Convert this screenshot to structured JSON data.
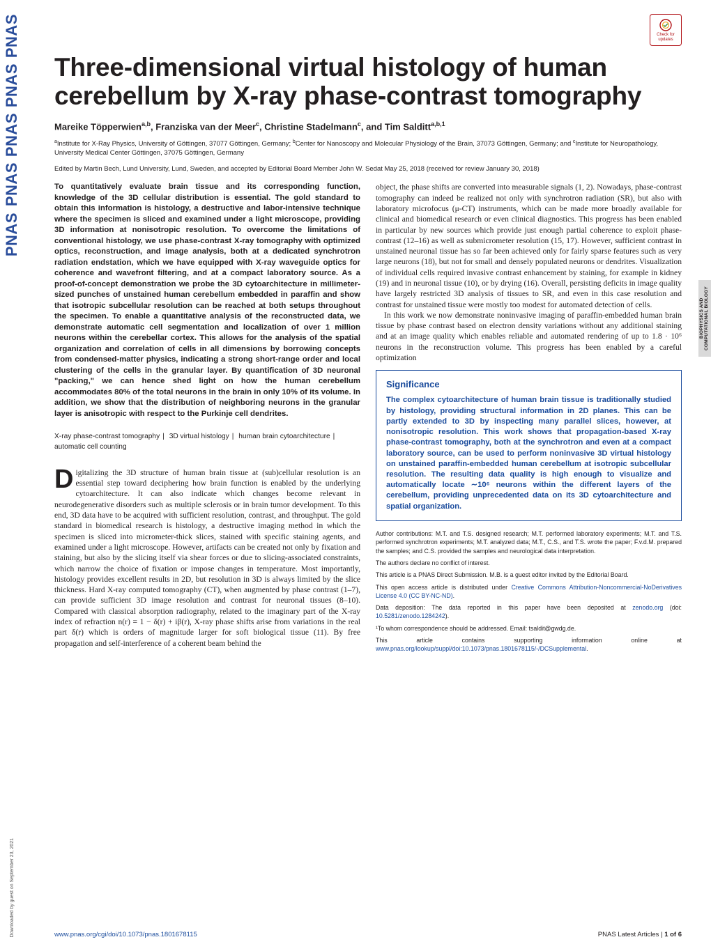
{
  "journal_side_label": "PNAS",
  "download_note": "Downloaded by guest on September 23, 2021",
  "check_badge": {
    "line1": "Check for",
    "line2": "updates"
  },
  "category_tab": "BIOPHYSICS AND\nCOMPUTATIONAL BIOLOGY",
  "title": "Three-dimensional virtual histology of human cerebellum by X-ray phase-contrast tomography",
  "authors_html": "Mareike Töpperwien<sup>a,b</sup>, Franziska van der Meer<sup>c</sup>, Christine Stadelmann<sup>c</sup>, and Tim Salditt<sup>a,b,1</sup>",
  "affiliations_html": "<sup>a</sup>Institute for X-Ray Physics, University of Göttingen, 37077 Göttingen, Germany; <sup>b</sup>Center for Nanoscopy and Molecular Physiology of the Brain, 37073 Göttingen, Germany; and <sup>c</sup>Institute for Neuropathology, University Medical Center Göttingen, 37075 Göttingen, Germany",
  "edited": "Edited by Martin Bech, Lund University, Lund, Sweden, and accepted by Editorial Board Member John W. Sedat May 25, 2018 (received for review January 30, 2018)",
  "abstract": "To quantitatively evaluate brain tissue and its corresponding function, knowledge of the 3D cellular distribution is essential. The gold standard to obtain this information is histology, a destructive and labor-intensive technique where the specimen is sliced and examined under a light microscope, providing 3D information at nonisotropic resolution. To overcome the limitations of conventional histology, we use phase-contrast X-ray tomography with optimized optics, reconstruction, and image analysis, both at a dedicated synchrotron radiation endstation, which we have equipped with X-ray waveguide optics for coherence and wavefront filtering, and at a compact laboratory source. As a proof-of-concept demonstration we probe the 3D cytoarchitecture in millimeter-sized punches of unstained human cerebellum embedded in paraffin and show that isotropic subcellular resolution can be reached at both setups throughout the specimen. To enable a quantitative analysis of the reconstructed data, we demonstrate automatic cell segmentation and localization of over 1 million neurons within the cerebellar cortex. This allows for the analysis of the spatial organization and correlation of cells in all dimensions by borrowing concepts from condensed-matter physics, indicating a strong short-range order and local clustering of the cells in the granular layer. By quantification of 3D neuronal \"packing,\" we can hence shed light on how the human cerebellum accommodates 80% of the total neurons in the brain in only 10% of its volume. In addition, we show that the distribution of neighboring neurons in the granular layer is anisotropic with respect to the Purkinje cell dendrites.",
  "keywords": [
    "X-ray phase-contrast tomography",
    "3D virtual histology",
    "human brain cytoarchitecture",
    "automatic cell counting"
  ],
  "body_left": "igitalizing the 3D structure of human brain tissue at (sub)cellular resolution is an essential step toward deciphering how brain function is enabled by the underlying cytoarchitecture. It can also indicate which changes become relevant in neurodegenerative disorders such as multiple sclerosis or in brain tumor development. To this end, 3D data have to be acquired with sufficient resolution, contrast, and throughput. The gold standard in biomedical research is histology, a destructive imaging method in which the specimen is sliced into micrometer-thick slices, stained with specific staining agents, and examined under a light microscope. However, artifacts can be created not only by fixation and staining, but also by the slicing itself via shear forces or due to slicing-associated constraints, which narrow the choice of fixation or impose changes in temperature. Most importantly, histology provides excellent results in 2D, but resolution in 3D is always limited by the slice thickness. Hard X-ray computed tomography (CT), when augmented by phase contrast (1–7), can provide sufficient 3D image resolution and contrast for neuronal tissues (8–10). Compared with classical absorption radiography, related to the imaginary part of the X-ray index of refraction n(r) = 1 − δ(r) + iβ(r), X-ray phase shifts arise from variations in the real part δ(r) which is orders of magnitude larger for soft biological tissue (11). By free propagation and self-interference of a coherent beam behind the",
  "body_right_p1": "object, the phase shifts are converted into measurable signals (1, 2). Nowadays, phase-contrast tomography can indeed be realized not only with synchrotron radiation (SR), but also with laboratory microfocus (μ-CT) instruments, which can be made more broadly available for clinical and biomedical research or even clinical diagnostics. This progress has been enabled in particular by new sources which provide just enough partial coherence to exploit phase-contrast (12–16) as well as submicrometer resolution (15, 17). However, sufficient contrast in unstained neuronal tissue has so far been achieved only for fairly sparse features such as very large neurons (18), but not for small and densely populated neurons or dendrites. Visualization of individual cells required invasive contrast enhancement by staining, for example in kidney (19) and in neuronal tissue (10), or by drying (16). Overall, persisting deficits in image quality have largely restricted 3D analysis of tissues to SR, and even in this case resolution and contrast for unstained tissue were mostly too modest for automated detection of cells.",
  "body_right_p2": "In this work we now demonstrate noninvasive imaging of paraffin-embedded human brain tissue by phase contrast based on electron density variations without any additional staining and at an image quality which enables reliable and automated rendering of up to 1.8 · 10⁶ neurons in the reconstruction volume. This progress has been enabled by a careful optimization",
  "significance": {
    "heading": "Significance",
    "text": "The complex cytoarchitecture of human brain tissue is traditionally studied by histology, providing structural information in 2D planes. This can be partly extended to 3D by inspecting many parallel slices, however, at nonisotropic resolution. This work shows that propagation-based X-ray phase-contrast tomography, both at the synchrotron and even at a compact laboratory source, can be used to perform noninvasive 3D virtual histology on unstained paraffin-embedded human cerebellum at isotropic subcellular resolution. The resulting data quality is high enough to visualize and automatically locate ∼10⁶ neurons within the different layers of the cerebellum, providing unprecedented data on its 3D cytoarchitecture and spatial organization."
  },
  "footnotes": {
    "contributions": "Author contributions: M.T. and T.S. designed research; M.T. performed laboratory experiments; M.T. and T.S. performed synchrotron experiments; M.T. analyzed data; M.T., C.S., and T.S. wrote the paper; F.v.d.M. prepared the samples; and C.S. provided the samples and neurological data interpretation.",
    "conflict": "The authors declare no conflict of interest.",
    "submission": "This article is a PNAS Direct Submission. M.B. is a guest editor invited by the Editorial Board.",
    "license_prefix": "This open access article is distributed under ",
    "license_link": "Creative Commons Attribution-Noncommercial-NoDerivatives License 4.0 (CC BY-NC-ND)",
    "deposition_prefix": "Data deposition: The data reported in this paper have been deposited at ",
    "deposition_link1": "zenodo.org",
    "deposition_mid": " (doi: ",
    "deposition_link2": "10.5281/zenodo.1284242",
    "deposition_suffix": ").",
    "correspondence": "¹To whom correspondence should be addressed. Email: tsaldit@gwdg.de.",
    "supporting_prefix": "This article contains supporting information online at ",
    "supporting_link": "www.pnas.org/lookup/suppl/doi:10.1073/pnas.1801678115/-/DCSupplemental",
    "supporting_suffix": "."
  },
  "footer": {
    "doi": "www.pnas.org/cgi/doi/10.1073/pnas.1801678115",
    "page_label_prefix": "PNAS Latest Articles",
    "page_sep": " | ",
    "page_num": "1 of 6"
  },
  "colors": {
    "brand_blue": "#1a4b9c",
    "badge_red": "#b11116",
    "tab_gray": "#d9d9d9",
    "text": "#231f20"
  }
}
